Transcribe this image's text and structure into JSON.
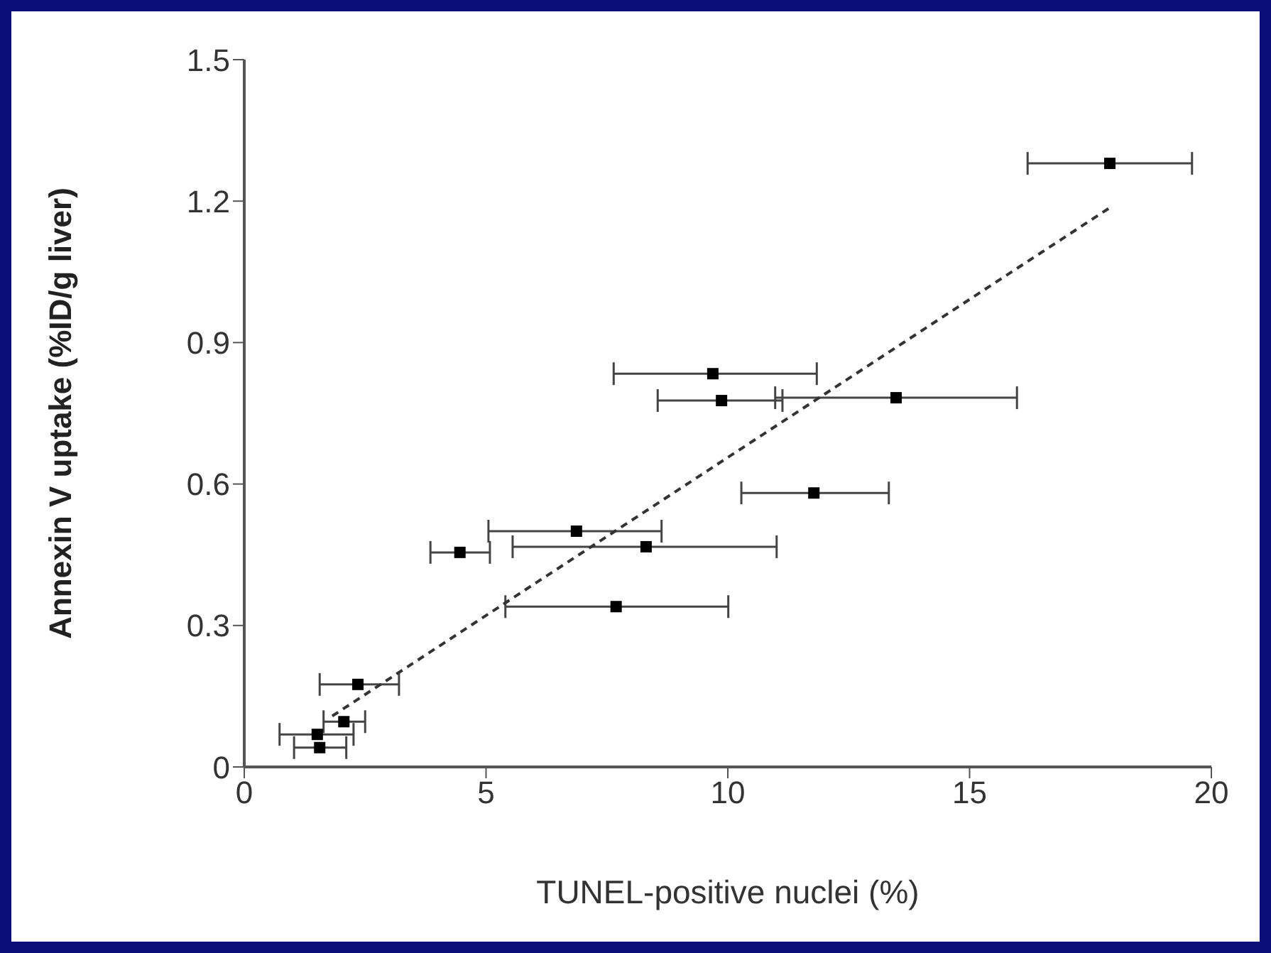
{
  "chart_data": {
    "type": "scatter",
    "xlabel": "TUNEL-positive nuclei (%)",
    "ylabel": "Annexin V uptake (%ID/g liver)",
    "xlim": [
      0,
      20
    ],
    "xticks": [
      0,
      5,
      10,
      15,
      20
    ],
    "ylim": [
      0,
      1.5
    ],
    "yticks": [
      0,
      0.3,
      0.6,
      0.9,
      1.2,
      1.5
    ],
    "grid": false,
    "marker": "square",
    "series": [
      {
        "color": "#000000",
        "x": [
          17.9,
          9.69,
          9.87,
          13.48,
          11.78,
          6.87,
          8.31,
          4.46,
          7.69,
          2.35,
          2.06,
          1.51,
          1.56
        ],
        "values": [
          1.28,
          0.834,
          0.777,
          0.783,
          0.581,
          0.5,
          0.467,
          0.455,
          0.34,
          0.175,
          0.096,
          0.069,
          0.041
        ],
        "xerrors": [
          [
            16.2,
            19.6
          ],
          [
            7.64,
            11.84
          ],
          [
            8.55,
            11.13
          ],
          [
            10.98,
            15.98
          ],
          [
            10.28,
            13.33
          ],
          [
            5.05,
            8.63
          ],
          [
            5.55,
            11.01
          ],
          [
            3.85,
            5.08
          ],
          [
            5.4,
            10.01
          ],
          [
            1.56,
            3.2
          ],
          [
            1.64,
            2.5
          ],
          [
            0.73,
            2.26
          ],
          [
            1.03,
            2.11
          ]
        ]
      },
      {
        "type": "line",
        "color": "#333333",
        "line_style": "dashed",
        "marker": "none",
        "x": [
          1.82,
          17.9
        ],
        "values": [
          0.108,
          1.186
        ]
      }
    ]
  }
}
